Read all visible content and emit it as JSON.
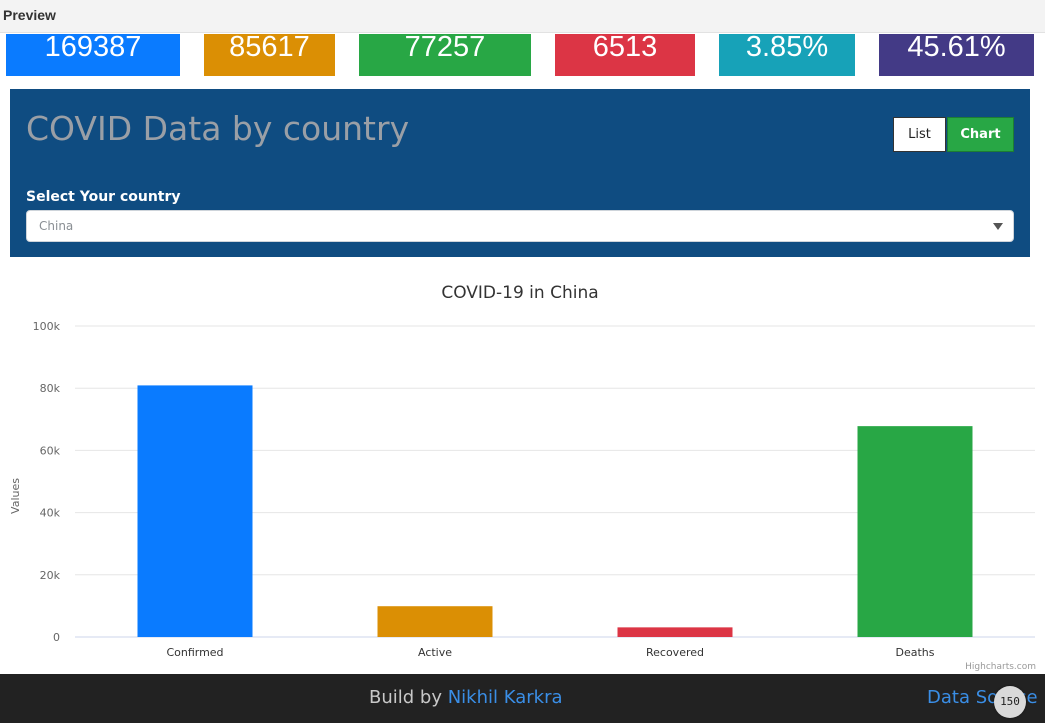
{
  "preview": {
    "title": "Preview"
  },
  "stats": [
    {
      "value": "169387",
      "color": "#0a7bff"
    },
    {
      "value": "85617",
      "color": "#db8f04"
    },
    {
      "value": "77257",
      "color": "#28a745"
    },
    {
      "value": "6513",
      "color": "#dc3545"
    },
    {
      "value": "3.85%",
      "color": "#17a2b8"
    },
    {
      "value": "45.61%",
      "color": "#433a86"
    }
  ],
  "panel": {
    "title": "COVID Data by country",
    "list_label": "List",
    "chart_label": "Chart",
    "select_label": "Select Your country",
    "selected_country": "China",
    "bg_color": "#0f4c81"
  },
  "chart_data": {
    "type": "bar",
    "title": "COVID-19 in China",
    "ylabel": "Values",
    "xlabel": "",
    "categories": [
      "Confirmed",
      "Active",
      "Recovered",
      "Deaths"
    ],
    "values": [
      80900,
      9900,
      3100,
      67800
    ],
    "colors": [
      "#0a7bff",
      "#db8f04",
      "#dc3545",
      "#28a745"
    ],
    "ylim": [
      0,
      100000
    ],
    "yticks": [
      0,
      20000,
      40000,
      60000,
      80000,
      100000
    ],
    "ytick_labels": [
      "0",
      "20k",
      "40k",
      "60k",
      "80k",
      "100k"
    ],
    "grid": true,
    "credit": "Highcharts.com"
  },
  "footer": {
    "build_prefix": "Build by ",
    "author": "Nikhil Karkra",
    "data_source": "Data Source",
    "badge": "150"
  }
}
